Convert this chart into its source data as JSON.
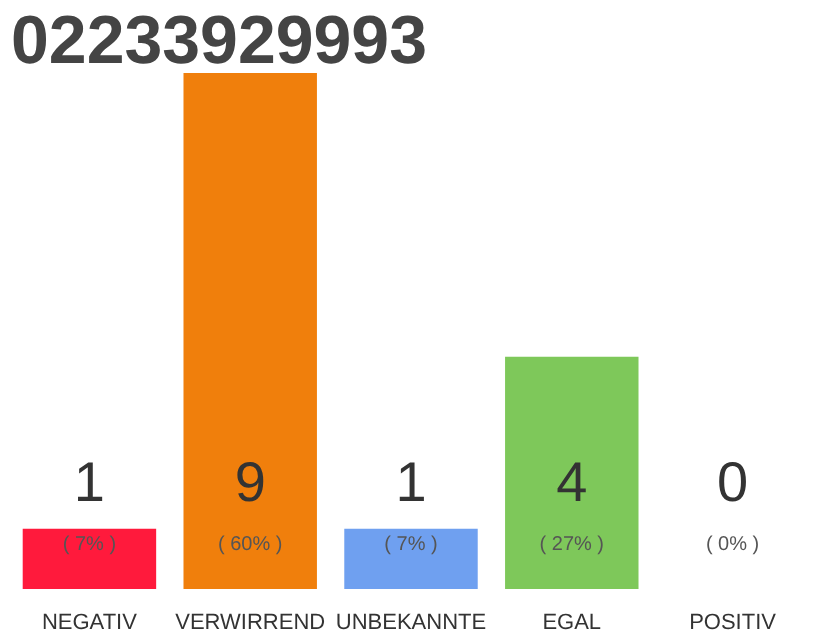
{
  "chart_data": {
    "type": "bar",
    "title": "02233929993",
    "categories": [
      "NEGATIV",
      "VERWIRREND",
      "UNBEKANNTE",
      "EGAL",
      "POSITIV"
    ],
    "values": [
      7,
      60,
      7,
      27,
      0
    ],
    "colors": [
      "#ff1a3c",
      "#f07f0c",
      "#6fa0f0",
      "#7ec85a",
      "#bbbbbb"
    ],
    "value_labels": [
      "( 7% )",
      "( 60% )",
      "( 7% )",
      "( 27% )",
      "( 0% )"
    ],
    "annotations": [
      "1",
      "9",
      "1",
      "4",
      "0"
    ],
    "grid": false
  }
}
